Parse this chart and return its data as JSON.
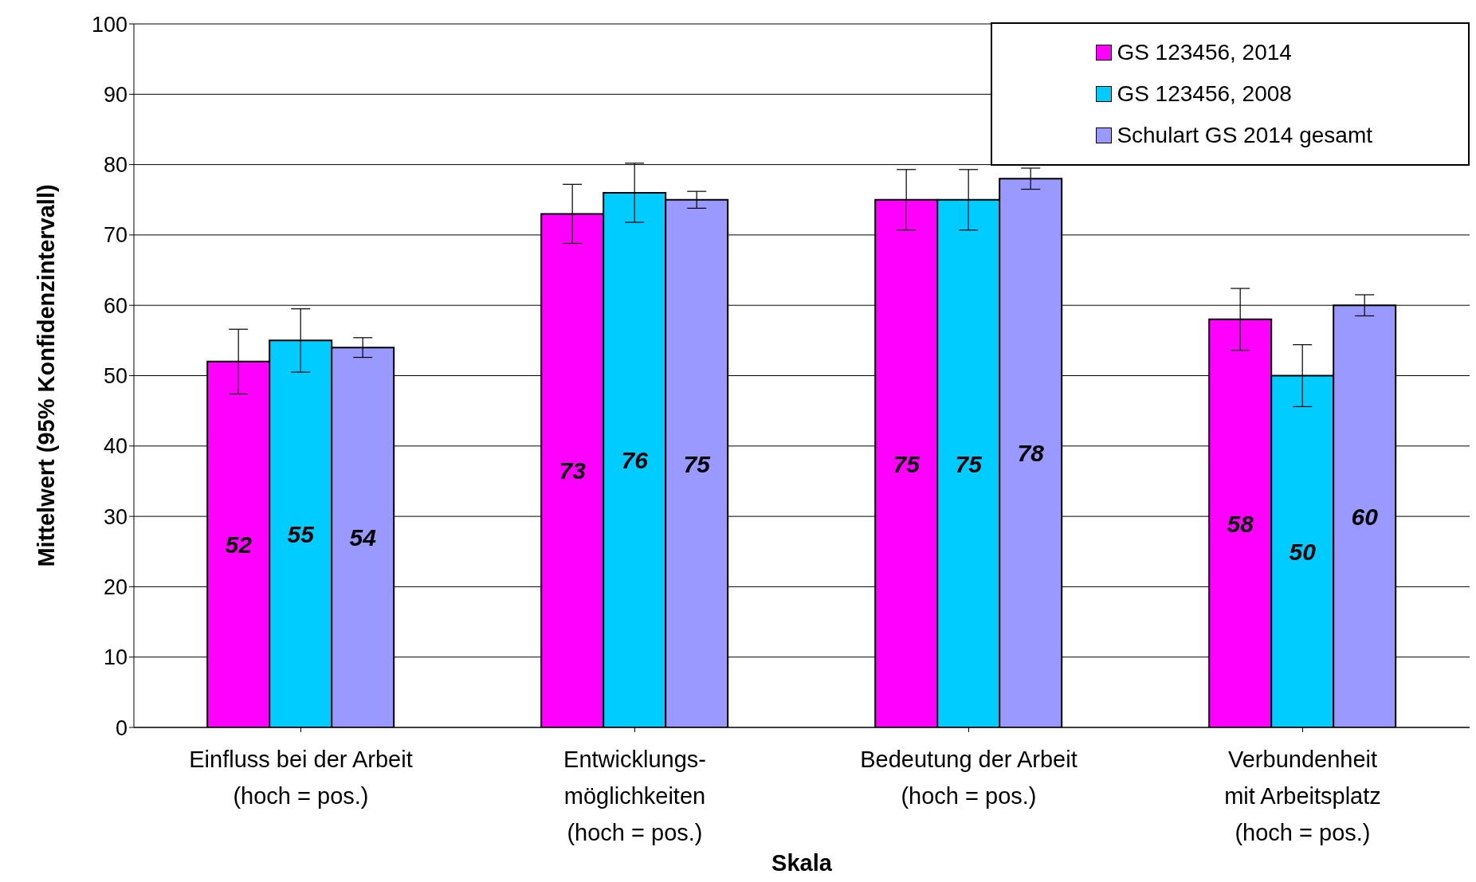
{
  "chart_data": {
    "type": "bar",
    "xlabel": "Skala",
    "ylabel": "Mittelwert (95% Konfidenzintervall)",
    "categories": [
      "Einfluss bei der Arbeit\n(hoch = pos.)",
      "Entwicklungs-\nmöglichkeiten\n(hoch = pos.)",
      "Bedeutung der Arbeit\n(hoch = pos.)",
      "Verbundenheit\nmit Arbeitsplatz\n(hoch = pos.)"
    ],
    "series": [
      {
        "name": "GS 123456, 2014",
        "color": "#ff00ff",
        "values": [
          52,
          73,
          75,
          58
        ],
        "errors": [
          4.6,
          4.2,
          4.3,
          4.4
        ]
      },
      {
        "name": "GS 123456, 2008",
        "color": "#00ccff",
        "values": [
          55,
          76,
          75,
          50
        ],
        "errors": [
          4.5,
          4.2,
          4.3,
          4.4
        ]
      },
      {
        "name": "Schulart GS 2014 gesamt",
        "color": "#9999ff",
        "values": [
          54,
          75,
          78,
          60
        ],
        "errors": [
          1.4,
          1.2,
          1.5,
          1.5
        ]
      }
    ],
    "ylim": [
      0,
      100
    ],
    "yticks": [
      0,
      10,
      20,
      30,
      40,
      50,
      60,
      70,
      80,
      90,
      100
    ],
    "grid": "y",
    "legend": "top right",
    "data_labels": true
  }
}
